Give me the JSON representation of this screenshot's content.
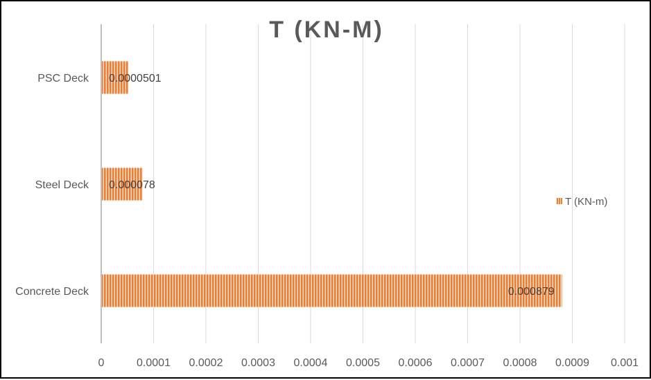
{
  "chart_data": {
    "type": "bar",
    "orientation": "horizontal",
    "title": "T (KN-M)",
    "categories": [
      "PSC Deck",
      "Steel Deck",
      "Concrete Deck"
    ],
    "series": [
      {
        "name": "T (KN-m)",
        "values": [
          5.01e-05,
          7.8e-05,
          0.000879
        ],
        "data_labels": [
          "0.0000501",
          "0.000078",
          "0.000879"
        ],
        "color": "#ED7D31"
      }
    ],
    "xlim": [
      0,
      0.001
    ],
    "xticks": [
      0,
      0.0001,
      0.0002,
      0.0003,
      0.0004,
      0.0005,
      0.0006,
      0.0007,
      0.0008,
      0.0009,
      0.001
    ],
    "xtick_labels": [
      "0",
      "0.0001",
      "0.0002",
      "0.0003",
      "0.0004",
      "0.0005",
      "0.0006",
      "0.0007",
      "0.0008",
      "0.0009",
      "0.001"
    ],
    "grid": "vertical",
    "legend": {
      "position": "right",
      "entries": [
        "T (KN-m)"
      ]
    },
    "colors": {
      "bar": "#ED7D31",
      "bar_stripe": "#FBE5D6",
      "grid": "#D9D9D9",
      "axis": "#BFBFBF",
      "text": "#595959"
    }
  }
}
